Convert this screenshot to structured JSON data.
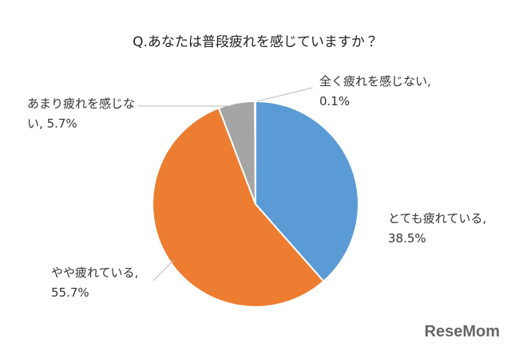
{
  "chart_data": {
    "type": "pie",
    "title": "Q.あなたは普段疲れを感じていますか？",
    "categories": [
      "とても疲れている",
      "やや疲れている",
      "あまり疲れを感じない",
      "全く疲れを感じない"
    ],
    "values": [
      38.5,
      55.7,
      5.7,
      0.1
    ],
    "value_labels": [
      "38.5%",
      "55.7%",
      "5.7%",
      "0.1%"
    ],
    "colors": [
      "#5b9bd5",
      "#ed7d31",
      "#a5a5a5",
      "#ffc000"
    ],
    "start_angle": 0,
    "direction": "clockwise"
  },
  "watermark": "ReseMom"
}
